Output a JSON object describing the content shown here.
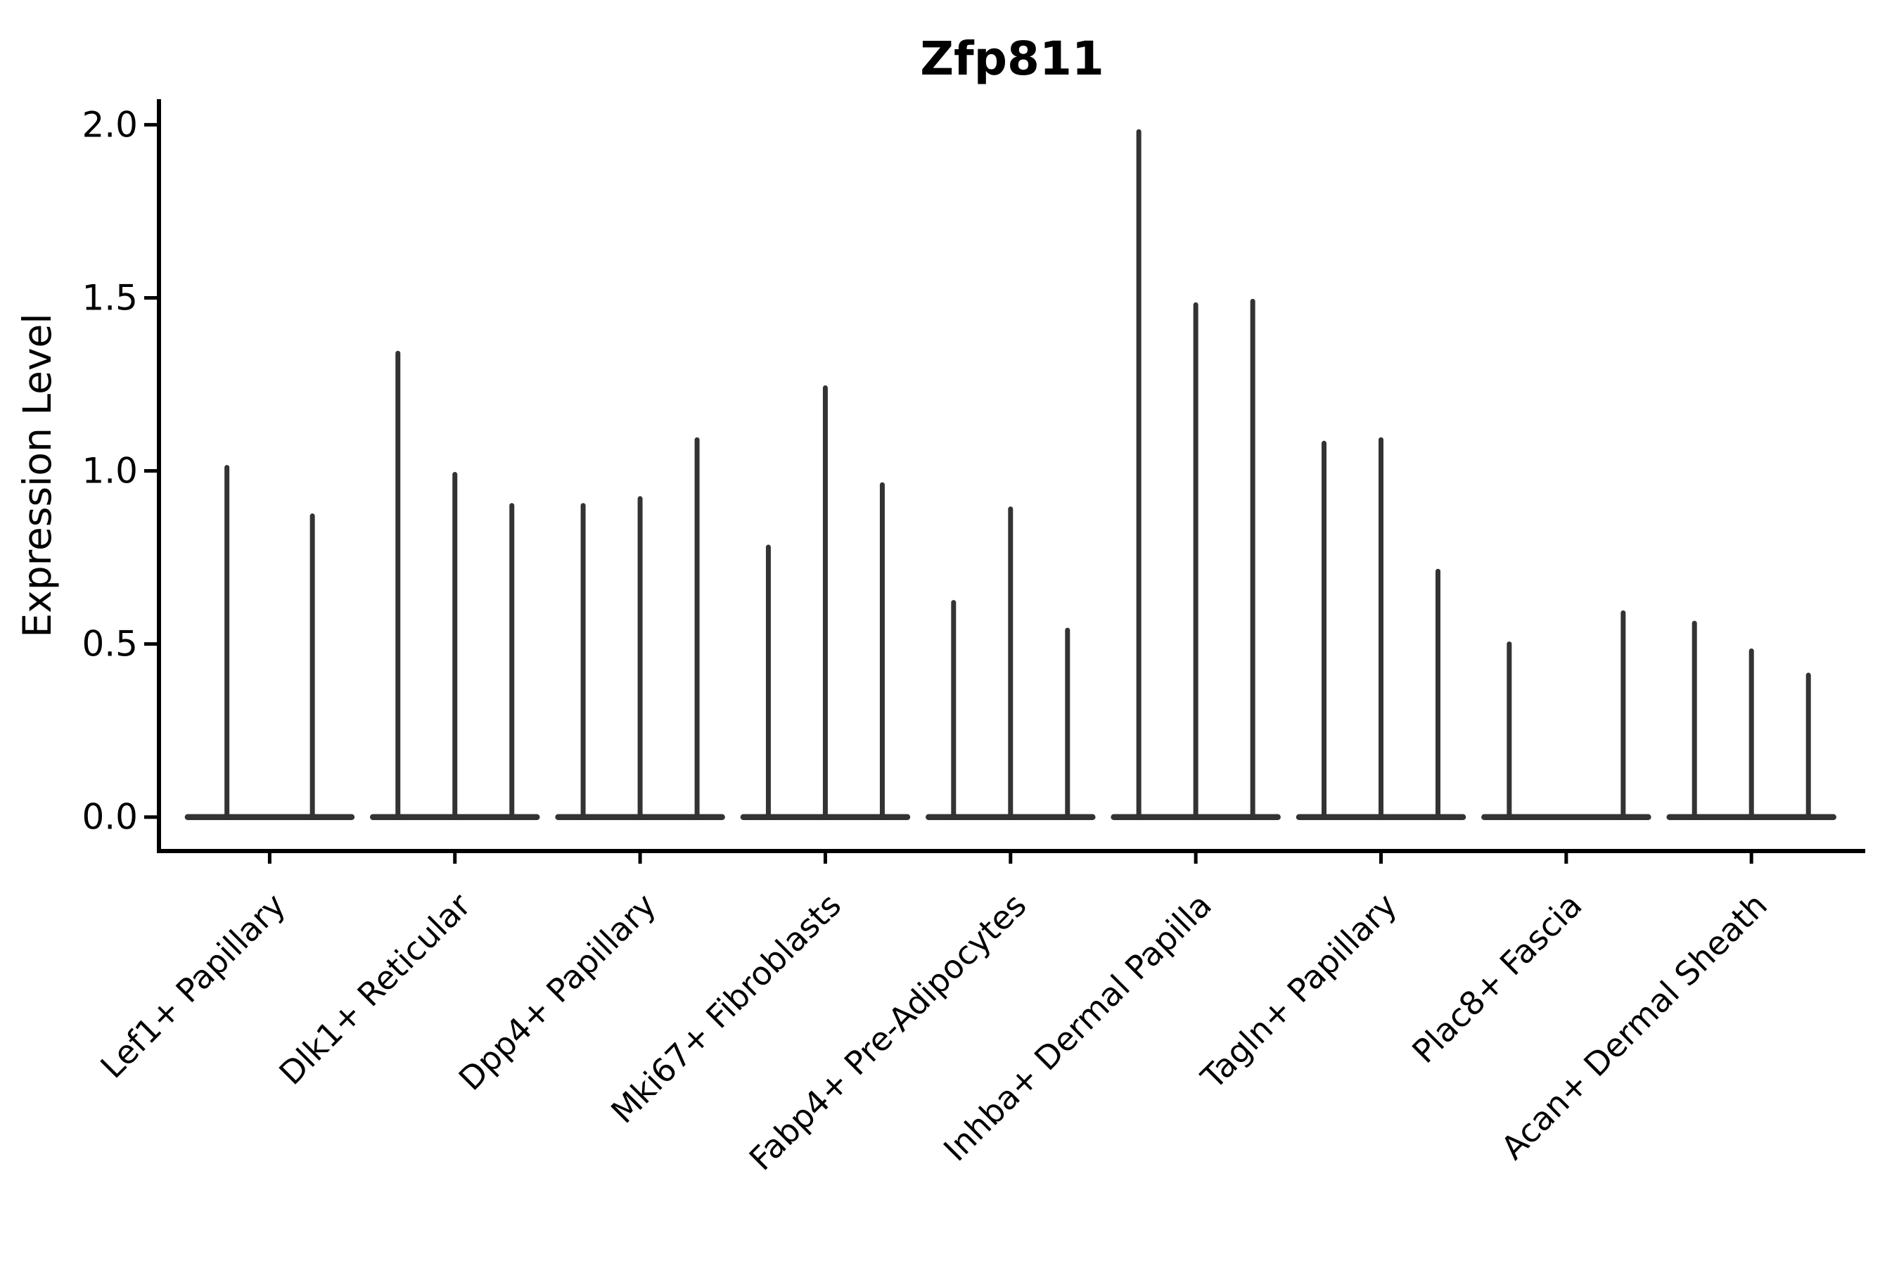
{
  "figure": {
    "background_color": "#ffffff",
    "axis_color": "#000000",
    "violin_color": "#333333",
    "text_color": "#000000"
  },
  "chart_data": {
    "type": "violin",
    "title": "Zfp811",
    "xlabel": "",
    "ylabel": "Expression Level",
    "ylim": [
      0.0,
      2.0
    ],
    "yticks": [
      0.0,
      0.5,
      1.0,
      1.5,
      2.0
    ],
    "ytick_labels": [
      "0.0",
      "0.5",
      "1.0",
      "1.5",
      "2.0"
    ],
    "grid": false,
    "legend": "none",
    "xtick_rotation_degrees": 45,
    "categories": [
      {
        "label": "Lef1+ Papillary",
        "violin_maxima": [
          1.01,
          0.87
        ]
      },
      {
        "label": "Dlk1+ Reticular",
        "violin_maxima": [
          1.34,
          0.99,
          0.9
        ]
      },
      {
        "label": "Dpp4+ Papillary",
        "violin_maxima": [
          0.9,
          0.92,
          1.09
        ]
      },
      {
        "label": "Mki67+ Fibroblasts",
        "violin_maxima": [
          0.78,
          1.24,
          0.96
        ]
      },
      {
        "label": "Fabp4+ Pre-Adipocytes",
        "violin_maxima": [
          0.62,
          0.89,
          0.54
        ]
      },
      {
        "label": "Inhba+ Dermal Papilla",
        "violin_maxima": [
          1.98,
          1.48,
          1.49
        ]
      },
      {
        "label": "Tagln+ Papillary",
        "violin_maxima": [
          1.08,
          1.09,
          0.71
        ]
      },
      {
        "label": "Plac8+ Fascia",
        "violin_maxima": [
          0.5,
          0.0,
          0.59
        ]
      },
      {
        "label": "Acan+ Dermal Sheath",
        "violin_maxima": [
          0.56,
          0.48,
          0.41
        ]
      }
    ]
  }
}
